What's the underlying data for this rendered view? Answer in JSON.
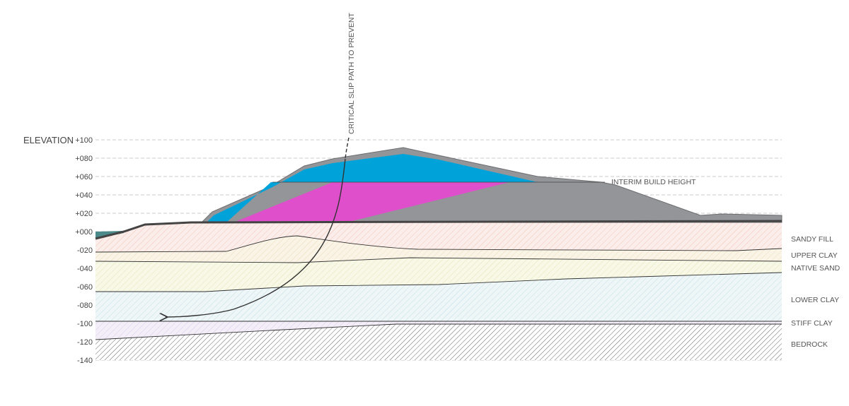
{
  "axis": {
    "title": "ELEVATION",
    "ticks": [
      {
        "value": 100,
        "label": "+100"
      },
      {
        "value": 80,
        "label": "+080"
      },
      {
        "value": 60,
        "label": "+060"
      },
      {
        "value": 40,
        "label": "+040"
      },
      {
        "value": 20,
        "label": "+020"
      },
      {
        "value": 0,
        "label": "+000"
      },
      {
        "value": -20,
        "label": "-020"
      },
      {
        "value": -40,
        "label": "-040"
      },
      {
        "value": -60,
        "label": "-060"
      },
      {
        "value": -80,
        "label": "-080"
      },
      {
        "value": -100,
        "label": "-100"
      },
      {
        "value": -120,
        "label": "-120"
      },
      {
        "value": -140,
        "label": "-140"
      }
    ]
  },
  "layers": [
    "SANDY FILL",
    "UPPER CLAY",
    "NATIVE SAND",
    "LOWER CLAY",
    "STIFF CLAY",
    "BEDROCK"
  ],
  "annotations": {
    "build_height": "INTERIM BUILD HEIGHT",
    "slip_path": "CRITICAL SLIP PATH TO PREVENT"
  }
}
